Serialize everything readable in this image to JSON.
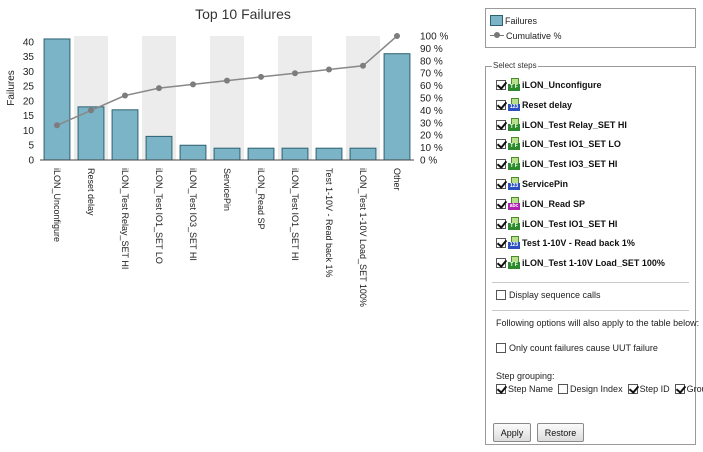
{
  "chart_data": {
    "type": "bar",
    "title": "Top 10 Failures",
    "ylabel": "Failures",
    "ylim": [
      0,
      42
    ],
    "y2lim": [
      0,
      100
    ],
    "yticks": [
      0,
      5,
      10,
      15,
      20,
      25,
      30,
      35,
      40
    ],
    "y2ticks": [
      "0 %",
      "10 %",
      "20 %",
      "30 %",
      "40 %",
      "50 %",
      "60 %",
      "70 %",
      "80 %",
      "90 %",
      "100 %"
    ],
    "categories": [
      "iLON_Unconfigure",
      "Reset delay",
      "iLON_Test Relay_SET HI",
      "iLON_Test IO1_SET LO",
      "iLON_Test IO3_SET HI",
      "ServicePin",
      "iLON_Read SP",
      "iLON_Test IO1_SET HI",
      "Test 1-10V - Read back 1%",
      "iLON_Test 1-10V Load_SET 100%",
      "Other"
    ],
    "series": [
      {
        "name": "Failures",
        "type": "bar",
        "values": [
          41,
          18,
          17,
          8,
          5,
          4,
          4,
          4,
          4,
          4,
          36
        ],
        "color": "#7ab4c6"
      },
      {
        "name": "Cumulative %",
        "type": "line",
        "values": [
          28,
          40,
          52,
          58,
          61,
          64,
          67,
          70,
          73,
          76,
          100
        ],
        "color": "#888888"
      }
    ],
    "grid": "alternating-bands",
    "legend": "top-right"
  },
  "legend": {
    "failures": "Failures",
    "cumulative": "Cumulative %"
  },
  "steps_panel": {
    "title": "Select steps",
    "steps": [
      {
        "label": "iLON_Unconfigure",
        "checked": true,
        "icon": "tf"
      },
      {
        "label": "Reset delay",
        "checked": true,
        "icon": "num"
      },
      {
        "label": "iLON_Test Relay_SET HI",
        "checked": true,
        "icon": "tf"
      },
      {
        "label": "iLON_Test IO1_SET LO",
        "checked": true,
        "icon": "tf"
      },
      {
        "label": "iLON_Test IO3_SET HI",
        "checked": true,
        "icon": "tf"
      },
      {
        "label": "ServicePin",
        "checked": true,
        "icon": "num"
      },
      {
        "label": "iLON_Read SP",
        "checked": true,
        "icon": "str"
      },
      {
        "label": "iLON_Test IO1_SET HI",
        "checked": true,
        "icon": "tf"
      },
      {
        "label": "Test 1-10V - Read back 1%",
        "checked": true,
        "icon": "num"
      },
      {
        "label": "iLON_Test 1-10V Load_SET 100%",
        "checked": true,
        "icon": "tf"
      }
    ],
    "display_sequence_calls": "Display sequence calls",
    "following_note": "Following options will also apply to the table below:",
    "only_count": "Only count failures cause UUT failure",
    "step_grouping_label": "Step grouping:",
    "grouping": [
      {
        "label": "Step Name",
        "checked": true
      },
      {
        "label": "Design Index",
        "checked": false
      },
      {
        "label": "Step ID",
        "checked": true
      },
      {
        "label": "Group",
        "checked": true
      }
    ],
    "apply_label": "Apply",
    "restore_label": "Restore"
  }
}
